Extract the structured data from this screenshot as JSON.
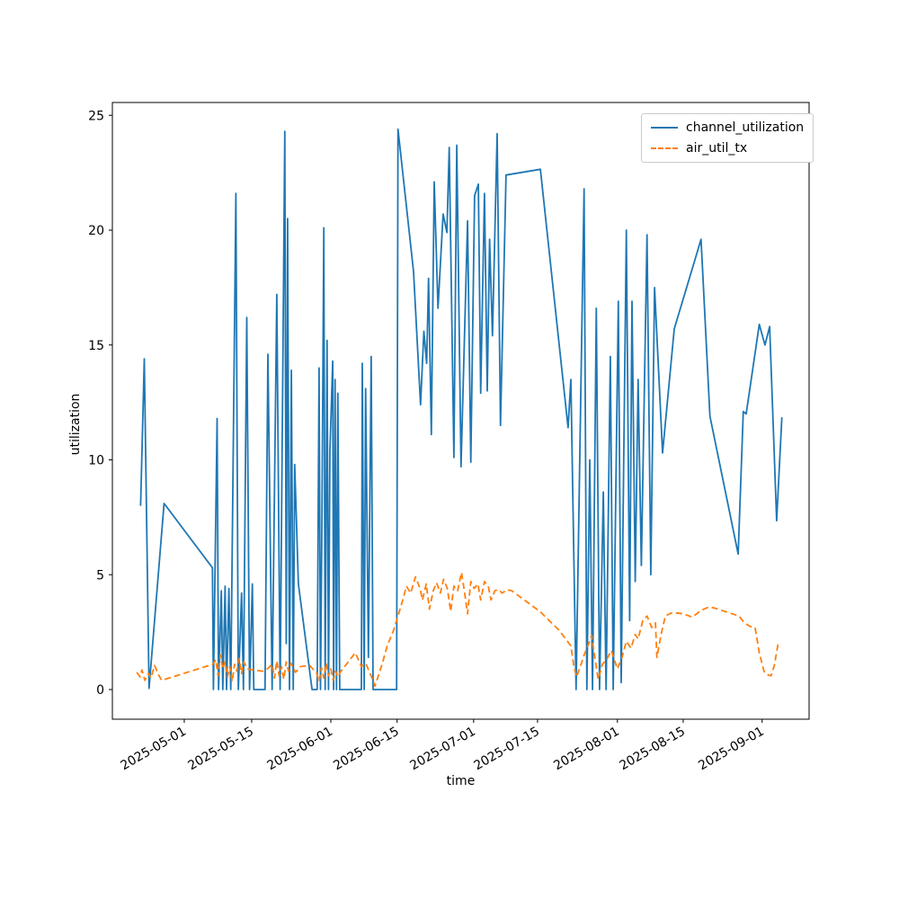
{
  "figure": {
    "background": "#ffffff"
  },
  "chart_data": {
    "type": "line",
    "title": "",
    "xlabel": "time",
    "ylabel": "utilization",
    "grid": false,
    "legend": {
      "position": "upper right"
    },
    "x_axis": {
      "unit": "days since 2025-04-16",
      "range": [
        0,
        148.3
      ],
      "ticks": [
        {
          "t": 15.3,
          "label": "2025-05-01"
        },
        {
          "t": 29.65,
          "label": "2025-05-15"
        },
        {
          "t": 46.5,
          "label": "2025-06-01"
        },
        {
          "t": 60.6,
          "label": "2025-06-15"
        },
        {
          "t": 76.9,
          "label": "2025-07-01"
        },
        {
          "t": 90.5,
          "label": "2025-07-15"
        },
        {
          "t": 107.5,
          "label": "2025-08-01"
        },
        {
          "t": 121.5,
          "label": "2025-08-15"
        },
        {
          "t": 138.3,
          "label": "2025-09-01"
        }
      ]
    },
    "y_axis": {
      "range": [
        -1.3,
        25.6
      ],
      "ticks": [
        0,
        5,
        10,
        15,
        20,
        25
      ]
    },
    "series": [
      {
        "name": "channel_utilization",
        "color": "#1f77b4",
        "style": "solid",
        "points": [
          [
            6,
            8.0
          ],
          [
            6.8,
            14.4
          ],
          [
            7.8,
            0.05
          ],
          [
            11,
            8.1
          ],
          [
            21.3,
            5.3
          ],
          [
            21.5,
            0
          ],
          [
            22.3,
            11.8
          ],
          [
            22.6,
            0
          ],
          [
            23.2,
            4.3
          ],
          [
            23.5,
            0
          ],
          [
            24,
            4.5
          ],
          [
            24.3,
            0
          ],
          [
            24.8,
            4.4
          ],
          [
            25.2,
            0
          ],
          [
            26.3,
            21.6
          ],
          [
            26.8,
            0
          ],
          [
            27.5,
            4.2
          ],
          [
            27.9,
            0
          ],
          [
            28.6,
            16.2
          ],
          [
            29.2,
            0
          ],
          [
            29.8,
            4.6
          ],
          [
            30.1,
            0
          ],
          [
            32.5,
            0
          ],
          [
            33.1,
            14.6
          ],
          [
            34,
            0
          ],
          [
            35,
            17.2
          ],
          [
            35.7,
            0
          ],
          [
            36.7,
            24.3
          ],
          [
            37,
            2
          ],
          [
            37.3,
            20.5
          ],
          [
            37.7,
            0
          ],
          [
            38.1,
            13.9
          ],
          [
            38.5,
            0
          ],
          [
            38.8,
            9.8
          ],
          [
            39.6,
            4.6
          ],
          [
            42.5,
            0
          ],
          [
            43.6,
            0
          ],
          [
            44,
            14
          ],
          [
            44.3,
            0
          ],
          [
            44.6,
            7.3
          ],
          [
            45,
            20.1
          ],
          [
            45.3,
            0
          ],
          [
            45.7,
            15.2
          ],
          [
            46,
            0
          ],
          [
            46.3,
            10.4
          ],
          [
            46.9,
            14.3
          ],
          [
            47.1,
            0
          ],
          [
            47.4,
            13.5
          ],
          [
            47.7,
            0
          ],
          [
            48,
            12.9
          ],
          [
            48.4,
            0
          ],
          [
            53,
            0
          ],
          [
            53.2,
            14.2
          ],
          [
            53.6,
            0
          ],
          [
            53.9,
            13.1
          ],
          [
            54.5,
            1.4
          ],
          [
            55.1,
            14.5
          ],
          [
            55.5,
            0
          ],
          [
            60.5,
            0
          ],
          [
            60.8,
            24.4
          ],
          [
            64.1,
            18.2
          ],
          [
            65.6,
            12.4
          ],
          [
            66.3,
            15.6
          ],
          [
            66.9,
            14.2
          ],
          [
            67.3,
            17.9
          ],
          [
            67.9,
            11.1
          ],
          [
            68.5,
            22.1
          ],
          [
            69.3,
            16.6
          ],
          [
            70.4,
            20.7
          ],
          [
            71.2,
            19.9
          ],
          [
            71.7,
            23.6
          ],
          [
            72.7,
            10.1
          ],
          [
            73.3,
            23.7
          ],
          [
            74.2,
            9.7
          ],
          [
            75.6,
            20.4
          ],
          [
            76.3,
            9.9
          ],
          [
            77.1,
            21.5
          ],
          [
            77.9,
            22
          ],
          [
            78.4,
            12.9
          ],
          [
            79.2,
            21.6
          ],
          [
            79.8,
            13
          ],
          [
            80.3,
            19.6
          ],
          [
            80.9,
            15.4
          ],
          [
            81.9,
            24.2
          ],
          [
            82.6,
            11.5
          ],
          [
            83.8,
            22.4
          ],
          [
            91.1,
            22.65
          ],
          [
            97,
            11.4
          ],
          [
            97.6,
            13.5
          ],
          [
            98.7,
            0
          ],
          [
            100.4,
            21.8
          ],
          [
            101,
            0
          ],
          [
            101.6,
            10
          ],
          [
            102.2,
            0
          ],
          [
            103,
            16.6
          ],
          [
            103.7,
            0
          ],
          [
            104.5,
            8.6
          ],
          [
            105.1,
            0
          ],
          [
            106,
            14.5
          ],
          [
            106.6,
            0
          ],
          [
            107.7,
            16.9
          ],
          [
            108.3,
            0.3
          ],
          [
            109.4,
            20
          ],
          [
            110.1,
            3
          ],
          [
            110.6,
            16.9
          ],
          [
            111.3,
            4.7
          ],
          [
            111.9,
            13.5
          ],
          [
            112.6,
            5.4
          ],
          [
            113.8,
            19.8
          ],
          [
            114.6,
            5
          ],
          [
            115.4,
            17.5
          ],
          [
            117.1,
            10.3
          ],
          [
            119.6,
            15.7
          ],
          [
            125.3,
            19.6
          ],
          [
            127.2,
            11.9
          ],
          [
            133.2,
            5.9
          ],
          [
            134.3,
            12.1
          ],
          [
            134.9,
            12
          ],
          [
            137.7,
            15.9
          ],
          [
            138.9,
            15
          ],
          [
            139.9,
            15.8
          ],
          [
            141.4,
            7.35
          ],
          [
            142.5,
            11.85
          ]
        ]
      },
      {
        "name": "air_util_tx",
        "color": "#ff7f0e",
        "style": "dashed",
        "points": [
          [
            5.2,
            0.75
          ],
          [
            5.9,
            0.55
          ],
          [
            6.3,
            0.85
          ],
          [
            6.9,
            0.4
          ],
          [
            7.7,
            0.7
          ],
          [
            8.2,
            0.5
          ],
          [
            9,
            1.05
          ],
          [
            9.8,
            0.65
          ],
          [
            10.5,
            0.4
          ],
          [
            21.4,
            1.1
          ],
          [
            22,
            1.3
          ],
          [
            22.5,
            0.6
          ],
          [
            23,
            1.5
          ],
          [
            23.5,
            0.9
          ],
          [
            24,
            1.2
          ],
          [
            24.5,
            0.55
          ],
          [
            25,
            1
          ],
          [
            25.5,
            0.35
          ],
          [
            26,
            1.1
          ],
          [
            26.5,
            0.8
          ],
          [
            27,
            1.35
          ],
          [
            27.5,
            0.7
          ],
          [
            28,
            1.2
          ],
          [
            28.7,
            0.9
          ],
          [
            30,
            0.85
          ],
          [
            32,
            0.8
          ],
          [
            33,
            0.9
          ],
          [
            34,
            1.1
          ],
          [
            34.5,
            0.5
          ],
          [
            35,
            1.25
          ],
          [
            35.5,
            0.6
          ],
          [
            36,
            1
          ],
          [
            36.5,
            0.45
          ],
          [
            37,
            1.2
          ],
          [
            37.5,
            0.8
          ],
          [
            38,
            1.15
          ],
          [
            39,
            0.75
          ],
          [
            40,
            1
          ],
          [
            42,
            1.05
          ],
          [
            43.5,
            0.7
          ],
          [
            44,
            0.35
          ],
          [
            44.5,
            0.95
          ],
          [
            45,
            0.5
          ],
          [
            45.5,
            1.15
          ],
          [
            46,
            0.6
          ],
          [
            46.5,
            0.9
          ],
          [
            47,
            0.4
          ],
          [
            47.5,
            0.8
          ],
          [
            48,
            0.55
          ],
          [
            48.5,
            0.75
          ],
          [
            51.7,
            1.6
          ],
          [
            53,
            1
          ],
          [
            53.9,
            1.15
          ],
          [
            55.5,
            0.4
          ],
          [
            55.9,
            0.15
          ],
          [
            57.4,
            1.1
          ],
          [
            58.5,
            1.9
          ],
          [
            59.9,
            2.6
          ],
          [
            60.8,
            3.2
          ],
          [
            61.8,
            3.9
          ],
          [
            62.6,
            4.5
          ],
          [
            63.5,
            4.2
          ],
          [
            64.5,
            4.9
          ],
          [
            65.5,
            4.4
          ],
          [
            66,
            3.9
          ],
          [
            66.8,
            4.6
          ],
          [
            67.5,
            3.5
          ],
          [
            68.3,
            4.3
          ],
          [
            69,
            4.65
          ],
          [
            69.8,
            4.2
          ],
          [
            70.5,
            4.8
          ],
          [
            71.3,
            4.4
          ],
          [
            72,
            3.4
          ],
          [
            72.7,
            4.5
          ],
          [
            73.5,
            4.3
          ],
          [
            74.3,
            5.1
          ],
          [
            75,
            4.2
          ],
          [
            75.6,
            3.3
          ],
          [
            76.3,
            4.7
          ],
          [
            77,
            4.4
          ],
          [
            77.8,
            4.6
          ],
          [
            78.4,
            3.9
          ],
          [
            79.2,
            4.7
          ],
          [
            80,
            4.5
          ],
          [
            80.6,
            3.9
          ],
          [
            81.4,
            4.3
          ],
          [
            82.2,
            4.35
          ],
          [
            83,
            4.2
          ],
          [
            84,
            4.35
          ],
          [
            85,
            4.3
          ],
          [
            87,
            4
          ],
          [
            89,
            3.7
          ],
          [
            91,
            3.4
          ],
          [
            93,
            3
          ],
          [
            95,
            2.6
          ],
          [
            96.5,
            2.2
          ],
          [
            97.6,
            1.9
          ],
          [
            98.2,
            1.05
          ],
          [
            98.8,
            0.55
          ],
          [
            99.6,
            1
          ],
          [
            100.4,
            1.5
          ],
          [
            101.4,
            2
          ],
          [
            102,
            2.35
          ],
          [
            103.4,
            0.45
          ],
          [
            104.3,
            1.1
          ],
          [
            105.2,
            1.3
          ],
          [
            106.2,
            1.7
          ],
          [
            107.5,
            0.9
          ],
          [
            108.5,
            1.4
          ],
          [
            109.4,
            2.1
          ],
          [
            110.4,
            1.8
          ],
          [
            111.3,
            2.4
          ],
          [
            111.9,
            2.2
          ],
          [
            112.9,
            3
          ],
          [
            113.8,
            3.2
          ],
          [
            114.8,
            2.7
          ],
          [
            115.6,
            2.9
          ],
          [
            115.9,
            1.4
          ],
          [
            116.8,
            2.4
          ],
          [
            117.7,
            3.2
          ],
          [
            119.2,
            3.35
          ],
          [
            121.5,
            3.3
          ],
          [
            123.4,
            3.15
          ],
          [
            124.4,
            3.3
          ],
          [
            125.3,
            3.45
          ],
          [
            127.1,
            3.6
          ],
          [
            129,
            3.5
          ],
          [
            131.1,
            3.35
          ],
          [
            133.4,
            3.2
          ],
          [
            134.5,
            2.9
          ],
          [
            135.7,
            2.75
          ],
          [
            136.8,
            2.7
          ],
          [
            137.7,
            1.6
          ],
          [
            138.7,
            0.8
          ],
          [
            139.3,
            0.65
          ],
          [
            140.2,
            0.6
          ],
          [
            140.9,
            1.05
          ],
          [
            141.8,
            2.1
          ]
        ]
      }
    ]
  }
}
